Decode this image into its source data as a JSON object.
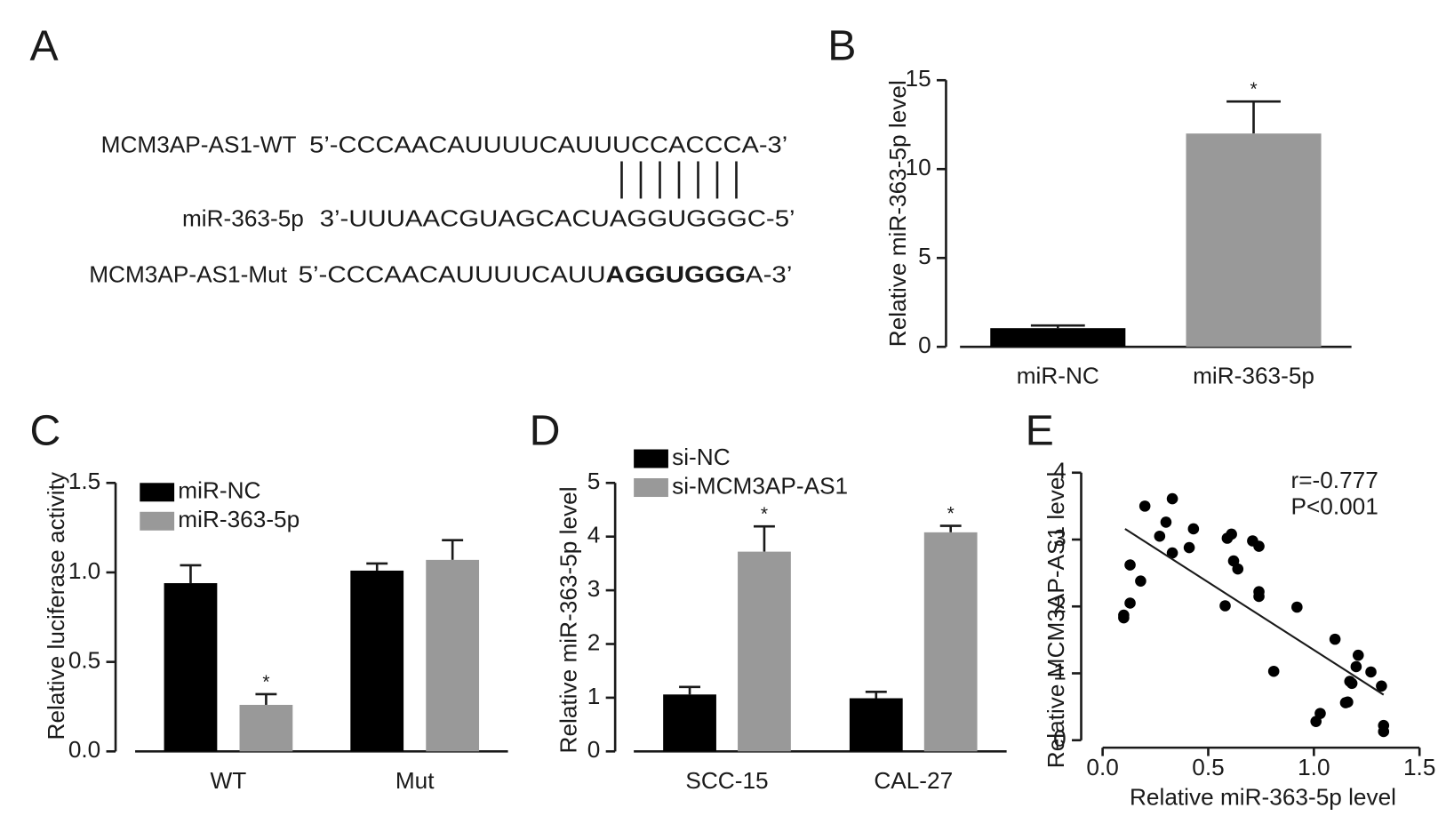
{
  "panel_a": {
    "label": "A",
    "rows": [
      {
        "name": "MCM3AP-AS1-WT",
        "sequence": [
          "5’-CCCAACAUUUUCAUUUCCACCCA-3’"
        ]
      },
      {
        "name": "miR-363-5p",
        "sequence": [
          "3’-UUUAACGUAGCACUAGGUGGGC-5’"
        ]
      },
      {
        "name": "MCM3AP-AS1-Mut",
        "sequence": [
          "5’-CCCAACAUUUUCAUU",
          "AGGUGGG",
          "A-3’"
        ]
      }
    ]
  },
  "chart_data": [
    {
      "type": "bar",
      "panel_label": "B",
      "ylabel": "Relative miR-363-5p level",
      "categories": [
        "miR-NC",
        "miR-363-5p"
      ],
      "values": [
        1.05,
        12.0
      ],
      "errors": [
        0.15,
        1.8
      ],
      "colors": [
        "#000000",
        "#999999"
      ],
      "significance": [
        null,
        "*"
      ],
      "ylim": [
        0,
        15
      ],
      "yticks": [
        0,
        5,
        10,
        15
      ]
    },
    {
      "type": "bar",
      "panel_label": "C",
      "ylabel": "Relative luciferase activity",
      "categories": [
        "WT",
        "Mut"
      ],
      "series": [
        {
          "name": "miR-NC",
          "color": "#000000",
          "values": [
            0.94,
            1.01
          ],
          "errors": [
            0.1,
            0.04
          ]
        },
        {
          "name": "miR-363-5p",
          "color": "#999999",
          "values": [
            0.26,
            1.07
          ],
          "errors": [
            0.06,
            0.11
          ],
          "significance": [
            "*",
            null
          ]
        }
      ],
      "ylim": [
        0,
        1.5
      ],
      "yticks": [
        {
          "value": 0,
          "label": "0.0"
        },
        0.5,
        {
          "value": 1,
          "label": "1.0"
        },
        1.5
      ],
      "legend": "top-left"
    },
    {
      "type": "bar",
      "panel_label": "D",
      "ylabel": "Relative miR-363-5p level",
      "categories": [
        "SCC-15",
        "CAL-27"
      ],
      "series": [
        {
          "name": "si-NC",
          "color": "#000000",
          "values": [
            1.06,
            0.99
          ],
          "errors": [
            0.14,
            0.12
          ]
        },
        {
          "name": "si-MCM3AP-AS1",
          "color": "#999999",
          "values": [
            3.72,
            4.08
          ],
          "errors": [
            0.47,
            0.12
          ],
          "significance": [
            "*",
            "*"
          ]
        }
      ],
      "ylim": [
        0,
        5
      ],
      "yticks": [
        0,
        1,
        2,
        3,
        4,
        5
      ],
      "legend": "top-left"
    },
    {
      "type": "scatter",
      "panel_label": "E",
      "xlabel": "Relative miR-363-5p level",
      "ylabel": "Relative MCM3AP-AS1 level",
      "x": [
        0.1,
        0.1,
        0.13,
        0.13,
        0.18,
        0.2,
        0.27,
        0.3,
        0.33,
        0.33,
        0.41,
        0.43,
        0.58,
        0.59,
        0.61,
        0.62,
        0.64,
        0.71,
        0.74,
        0.74,
        0.74,
        0.81,
        0.92,
        1.01,
        1.03,
        1.1,
        1.15,
        1.16,
        1.17,
        1.18,
        1.2,
        1.21,
        1.27,
        1.32,
        1.33,
        1.33
      ],
      "y": [
        1.87,
        1.83,
        2.62,
        2.05,
        2.38,
        3.5,
        3.05,
        3.26,
        3.61,
        2.8,
        2.88,
        3.16,
        2.01,
        3.02,
        3.08,
        2.68,
        2.56,
        2.98,
        2.9,
        2.22,
        2.15,
        1.03,
        1.99,
        0.28,
        0.4,
        1.51,
        0.56,
        0.57,
        0.88,
        0.85,
        1.1,
        1.27,
        1.02,
        0.81,
        0.22,
        0.13
      ],
      "color": "#000000",
      "fit_line": {
        "x": [
          0.106,
          1.33
        ],
        "y": [
          3.16,
          0.68
        ]
      },
      "annotations": [
        "r=-0.777",
        "P<0.001"
      ],
      "xlim": [
        0,
        1.5
      ],
      "xticks": [
        {
          "value": 0,
          "label": "0.0"
        },
        0.5,
        {
          "value": 1,
          "label": "1.0"
        },
        1.5
      ],
      "ylim": [
        0,
        4
      ],
      "yticks": [
        0,
        1,
        2,
        3,
        4
      ]
    }
  ]
}
